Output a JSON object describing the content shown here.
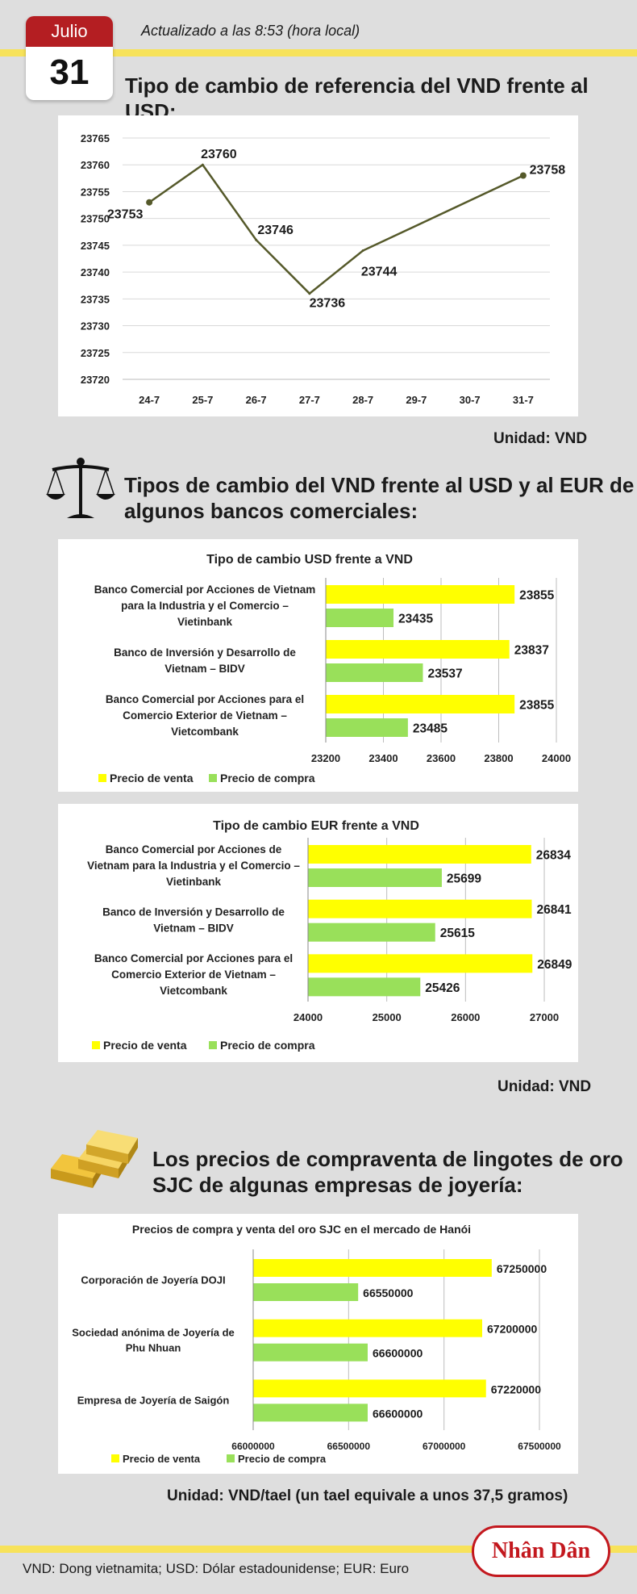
{
  "header": {
    "month": "Julio",
    "day": "31",
    "updated": "Actualizado a las 8:53 (hora local)"
  },
  "colors": {
    "sell": "#ffff00",
    "buy": "#99e05a",
    "line": "#55592a",
    "brand_red": "#c3181e",
    "band": "#f7e25a"
  },
  "icons": [
    "scale-icon",
    "gold-bars-icon"
  ],
  "section1": {
    "title": "Tipo de cambio de referencia del VND frente al USD:",
    "unit": "Unidad: VND"
  },
  "section2": {
    "title_line1": "Tipos de cambio del VND frente al USD y al EUR de",
    "title_line2": "algunos bancos comerciales:",
    "unit": "Unidad: VND"
  },
  "section3": {
    "title_line1": "Los precios de compraventa de lingotes de oro",
    "title_line2": "SJC de algunas empresas de joyería:",
    "unit": "Unidad: VND/tael (un tael equivale a unos 37,5 gramos)"
  },
  "footer": {
    "logo": "Nhân Dân",
    "note": "VND: Dong vietnamita; USD: Dólar estadounidense; EUR: Euro"
  },
  "chart_data": [
    {
      "type": "line",
      "title": "",
      "x": [
        "24-7",
        "25-7",
        "26-7",
        "27-7",
        "28-7",
        "29-7",
        "30-7",
        "31-7"
      ],
      "values": [
        23753,
        23760,
        23746,
        23736,
        23744,
        null,
        null,
        23758
      ],
      "data_labels": [
        "23753",
        "23760",
        "23746",
        "23736",
        "23744",
        "",
        "",
        "23758"
      ],
      "ylim": [
        23720,
        23765
      ],
      "yticks": [
        23720,
        23725,
        23730,
        23735,
        23740,
        23745,
        23750,
        23755,
        23760,
        23765
      ],
      "grid": true
    },
    {
      "type": "bar",
      "orientation": "horizontal",
      "title": "Tipo de cambio USD frente a VND",
      "categories": [
        [
          "Banco Comercial por Acciones de Vietnam",
          "para la Industria y el Comercio –",
          "Vietinbank"
        ],
        [
          "Banco de Inversión y Desarrollo de",
          "Vietnam – BIDV"
        ],
        [
          "Banco Comercial por Acciones para el",
          "Comercio Exterior de Vietnam –",
          "Vietcombank"
        ]
      ],
      "series": [
        {
          "name": "Precio de venta",
          "values": [
            23855,
            23837,
            23855
          ]
        },
        {
          "name": "Precio de compra",
          "values": [
            23435,
            23537,
            23485
          ]
        }
      ],
      "xlim": [
        23200,
        24000
      ],
      "xticks": [
        23200,
        23400,
        23600,
        23800,
        24000
      ],
      "legend": "bottom-left",
      "grid": true
    },
    {
      "type": "bar",
      "orientation": "horizontal",
      "title": "Tipo de cambio EUR frente a VND",
      "categories": [
        [
          "Banco Comercial por Acciones de",
          "Vietnam para la Industria y el Comercio –",
          "Vietinbank"
        ],
        [
          "Banco de Inversión y Desarrollo de",
          "Vietnam – BIDV"
        ],
        [
          "Banco Comercial por Acciones para el",
          "Comercio Exterior de Vietnam –",
          "Vietcombank"
        ]
      ],
      "series": [
        {
          "name": "Precio de venta",
          "values": [
            26834,
            26841,
            26849
          ]
        },
        {
          "name": "Precio de compra",
          "values": [
            25699,
            25615,
            25426
          ]
        }
      ],
      "xlim": [
        24000,
        27000
      ],
      "xticks": [
        24000,
        25000,
        26000,
        27000
      ],
      "legend": "bottom-left",
      "grid": true
    },
    {
      "type": "bar",
      "orientation": "horizontal",
      "title": "Precios de compra y venta del oro SJC en el mercado de Hanói",
      "categories": [
        [
          "Corporación de Joyería DOJI"
        ],
        [
          "Sociedad anónima de Joyería de",
          "Phu Nhuan"
        ],
        [
          "Empresa de Joyería de Saigón"
        ]
      ],
      "series": [
        {
          "name": "Precio de venta",
          "values": [
            67250000,
            67200000,
            67220000
          ]
        },
        {
          "name": "Precio de compra",
          "values": [
            66550000,
            66600000,
            66600000
          ]
        }
      ],
      "xlim": [
        66000000,
        67500000
      ],
      "xticks": [
        66000000,
        66500000,
        67000000,
        67500000
      ],
      "legend": "bottom-left",
      "grid": true
    }
  ]
}
